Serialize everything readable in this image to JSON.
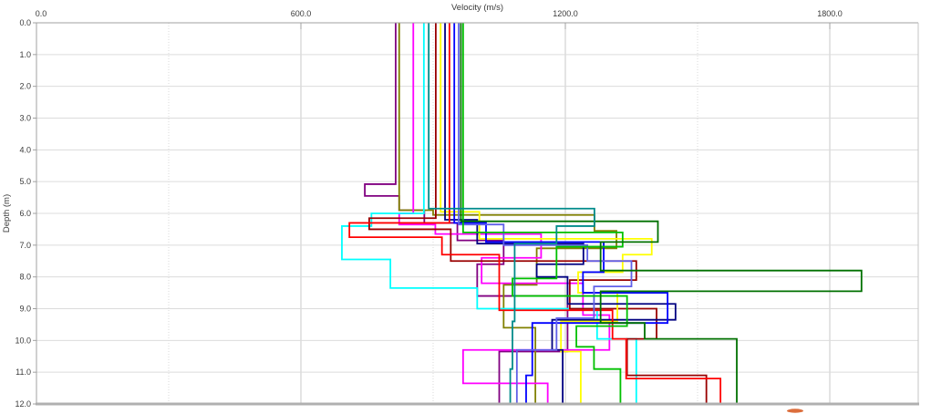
{
  "window": {
    "background_color": "#ffffff"
  },
  "chart_data": {
    "type": "line",
    "subtype": "step-profiles",
    "title": "Velocity (m/s)",
    "xlabel": "Velocity (m/s)",
    "ylabel": "Depth (m)",
    "x_axis": {
      "position": "top",
      "min": 0,
      "max": 2000,
      "ticks": [
        0,
        600,
        1200,
        1800
      ],
      "tick_labels": [
        "0.0",
        "600.0",
        "1200.0",
        "1800.0"
      ],
      "minor_gridlines": [
        300,
        900,
        1500
      ]
    },
    "y_axis": {
      "position": "left",
      "min": 0,
      "max": 12,
      "inverted": true,
      "ticks": [
        0,
        1,
        2,
        3,
        4,
        5,
        6,
        7,
        8,
        9,
        10,
        11,
        12
      ],
      "tick_labels": [
        "0.0",
        "1.0",
        "2.0",
        "3.0",
        "4.0",
        "5.0",
        "6.0",
        "7.0",
        "8.0",
        "9.0",
        "10.0",
        "11.0",
        "12.0"
      ]
    },
    "grid": {
      "h_color": "#dcdcdc",
      "v_major_color": "#c8c8c8",
      "v_minor_color": "#d8d8d8",
      "axis_color": "#a0a0a0",
      "bottom_axis_color": "#b0b0b0",
      "right_edge_color": "#c4c4c4"
    },
    "legend": "none",
    "series_note": "Each profile is [depth_top_m, velocity_m_s]; velocity holds constant until next depth; last layer extends to 12 m.",
    "series": [
      {
        "name": "purple",
        "color": "#800080",
        "profile": [
          [
            0,
            815
          ],
          [
            5.08,
            745
          ],
          [
            5.45,
            823
          ],
          [
            5.9,
            880
          ],
          [
            6.3,
            955
          ],
          [
            6.85,
            1060
          ],
          [
            7.6,
            1000
          ],
          [
            8.6,
            1205
          ],
          [
            10.35,
            1050
          ]
        ]
      },
      {
        "name": "olive",
        "color": "#808000",
        "profile": [
          [
            0,
            823
          ],
          [
            5.9,
            900
          ],
          [
            6.05,
            1266
          ],
          [
            6.55,
            1316
          ],
          [
            7.1,
            1135
          ],
          [
            8.25,
            1060
          ],
          [
            9.6,
            1132
          ]
        ]
      },
      {
        "name": "magenta",
        "color": "#ff00ff",
        "profile": [
          [
            0,
            855
          ],
          [
            6.0,
            823
          ],
          [
            6.35,
            905
          ],
          [
            6.65,
            1145
          ],
          [
            7.4,
            1010
          ],
          [
            8.2,
            1240
          ],
          [
            9.2,
            1300
          ],
          [
            10.3,
            968
          ],
          [
            11.35,
            1160
          ]
        ]
      },
      {
        "name": "cyan",
        "color": "#00ffff",
        "profile": [
          [
            0,
            879
          ],
          [
            6.0,
            760
          ],
          [
            6.4,
            693
          ],
          [
            7.45,
            803
          ],
          [
            8.35,
            1000
          ],
          [
            9.0,
            1272
          ],
          [
            9.95,
            1361
          ]
        ]
      },
      {
        "name": "maroon",
        "color": "#990000",
        "profile": [
          [
            0,
            906
          ],
          [
            6.15,
            755
          ],
          [
            6.5,
            940
          ],
          [
            7.5,
            1361
          ],
          [
            8.1,
            1210
          ],
          [
            9.0,
            1407
          ],
          [
            9.95,
            1340
          ],
          [
            11.1,
            1520
          ]
        ]
      },
      {
        "name": "yellow",
        "color": "#ffff00",
        "profile": [
          [
            0,
            917
          ],
          [
            5.95,
            1005
          ],
          [
            6.8,
            1396
          ],
          [
            7.3,
            1330
          ],
          [
            7.85,
            1229
          ],
          [
            8.5,
            1318
          ],
          [
            9.4,
            1190
          ],
          [
            10.35,
            1235
          ]
        ]
      },
      {
        "name": "navy",
        "color": "#000080",
        "profile": [
          [
            0,
            927
          ],
          [
            6.2,
            1000
          ],
          [
            6.95,
            1241
          ],
          [
            7.6,
            1135
          ],
          [
            8.0,
            1205
          ],
          [
            8.85,
            1450
          ],
          [
            9.35,
            1170
          ],
          [
            10.3,
            1194
          ]
        ]
      },
      {
        "name": "red",
        "color": "#ff0000",
        "profile": [
          [
            0,
            937
          ],
          [
            6.3,
            710
          ],
          [
            6.75,
            920
          ],
          [
            7.3,
            1050
          ],
          [
            9.05,
            1307
          ],
          [
            9.95,
            1338
          ],
          [
            11.2,
            1552
          ]
        ]
      },
      {
        "name": "blue",
        "color": "#0000ff",
        "profile": [
          [
            0,
            948
          ],
          [
            6.3,
            1020
          ],
          [
            6.9,
            1287
          ],
          [
            7.85,
            1240
          ],
          [
            8.5,
            1432
          ],
          [
            9.45,
            1125
          ],
          [
            11.1,
            1111
          ]
        ]
      },
      {
        "name": "slateblue",
        "color": "#6060e8",
        "profile": [
          [
            0,
            958
          ],
          [
            6.35,
            1060
          ],
          [
            7.0,
            1250
          ],
          [
            7.5,
            1350
          ],
          [
            8.3,
            1265
          ],
          [
            9.3,
            1180
          ],
          [
            10.3,
            1090
          ]
        ]
      },
      {
        "name": "green",
        "color": "#00c000",
        "profile": [
          [
            0,
            968
          ],
          [
            6.6,
            1330
          ],
          [
            7.05,
            1180
          ],
          [
            8.05,
            1080
          ],
          [
            8.6,
            1340
          ],
          [
            9.55,
            1225
          ],
          [
            10.2,
            1265
          ],
          [
            10.9,
            1325
          ]
        ]
      },
      {
        "name": "darkgreen",
        "color": "#007000",
        "profile": [
          [
            0,
            963
          ],
          [
            6.25,
            1410
          ],
          [
            6.9,
            1280
          ],
          [
            7.8,
            1872
          ],
          [
            8.45,
            1280
          ],
          [
            9.45,
            1380
          ],
          [
            9.95,
            1589
          ]
        ]
      },
      {
        "name": "teal",
        "color": "#008b8b",
        "profile": [
          [
            0,
            890
          ],
          [
            5.85,
            1266
          ],
          [
            6.4,
            1180
          ],
          [
            6.95,
            1085
          ],
          [
            9.4,
            1080
          ],
          [
            10.9,
            1075
          ]
        ]
      }
    ]
  },
  "decorations": {
    "logo_fragment_color": "#dc6e3c"
  }
}
